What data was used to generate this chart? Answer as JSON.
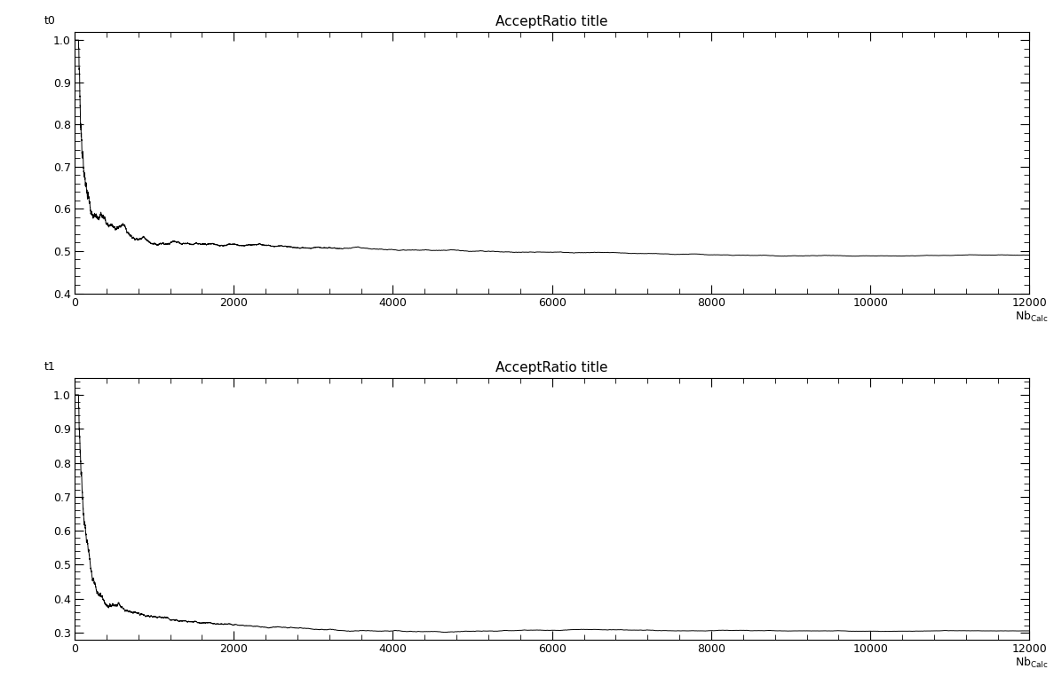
{
  "title": "AcceptRatio title",
  "plot1": {
    "ylabel": "t0",
    "ylim": [
      0.4,
      1.02
    ],
    "yticks": [
      0.4,
      0.5,
      0.6,
      0.7,
      0.8,
      0.9,
      1.0
    ],
    "convergence_value": 0.495,
    "noise_long": 0.003
  },
  "plot2": {
    "ylabel": "t1",
    "ylim": [
      0.28,
      1.05
    ],
    "yticks": [
      0.3,
      0.4,
      0.5,
      0.6,
      0.7,
      0.8,
      0.9,
      1.0
    ],
    "convergence_value": 0.305,
    "noise_long": 0.002
  },
  "xlim": [
    0,
    12000
  ],
  "xticks": [
    0,
    2000,
    4000,
    6000,
    8000,
    10000,
    12000
  ],
  "n_points": 12000,
  "line_color": "#000000",
  "line_width": 0.7,
  "background_color": "#ffffff",
  "title_fontsize": 11,
  "label_fontsize": 9,
  "tick_fontsize": 9
}
